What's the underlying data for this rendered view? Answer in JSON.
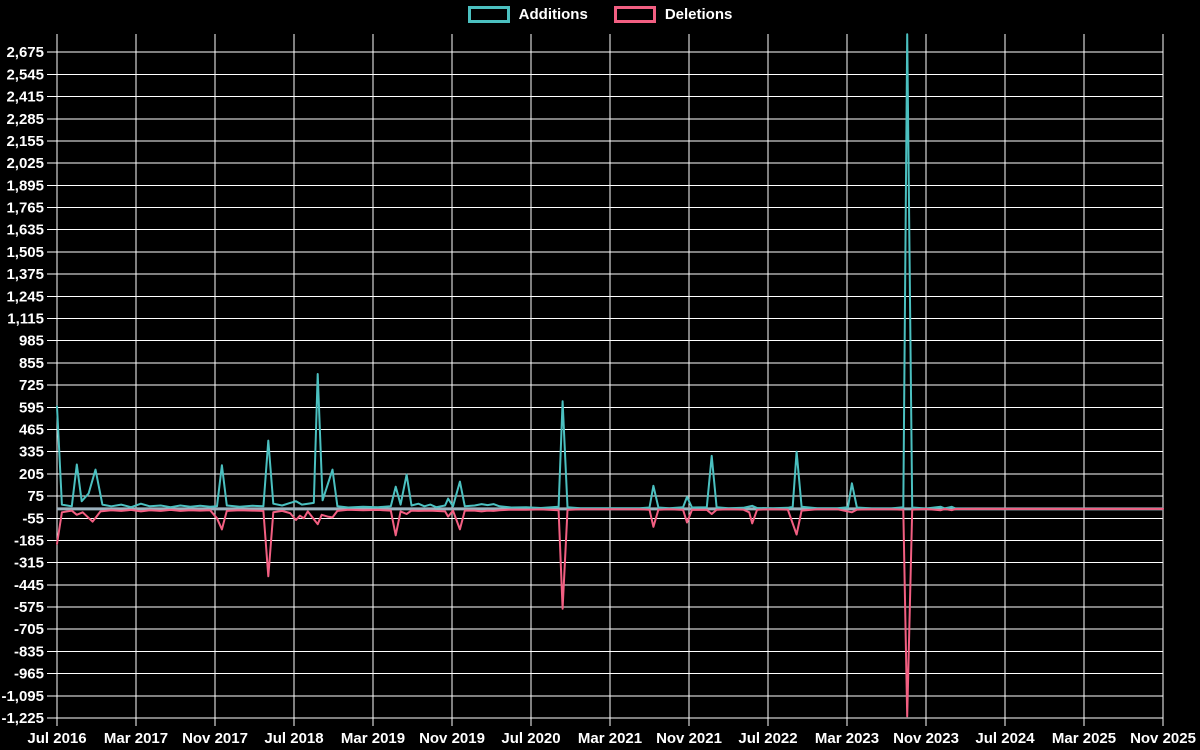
{
  "chart_data": {
    "type": "line",
    "title": "",
    "background": "#000000",
    "grid_color": "#ffffff",
    "text_color": "#ffffff",
    "zero_line_color": "#9bb0bc",
    "legend_position": "top-center",
    "grid": true,
    "x_axis": {
      "tick_labels": [
        "Jul 2016",
        "Mar 2017",
        "Nov 2017",
        "Jul 2018",
        "Mar 2019",
        "Nov 2019",
        "Jul 2020",
        "Mar 2021",
        "Nov 2021",
        "Jul 2022",
        "Mar 2023",
        "Nov 2023",
        "Jul 2024",
        "Mar 2025",
        "Nov 2025"
      ],
      "months_per_tick": 8
    },
    "y_axis": {
      "min": -1225,
      "max": 2805,
      "tick_start": -1225,
      "tick_end": 2675,
      "tick_step": 130,
      "tick_labels": [
        "2,675",
        "2,545",
        "2,415",
        "2,285",
        "2,155",
        "2,025",
        "1,895",
        "1,765",
        "1,635",
        "1,505",
        "1,375",
        "1,245",
        "1,115",
        "985",
        "855",
        "725",
        "595",
        "465",
        "335",
        "205",
        "75",
        "-55",
        "-185",
        "-315",
        "-445",
        "-575",
        "-705",
        "-835",
        "-965",
        "-1,095",
        "-1,225"
      ]
    },
    "series": [
      {
        "name": "Additions",
        "color": "#4bc0c0",
        "points": [
          [
            0,
            600
          ],
          [
            0.5,
            25
          ],
          [
            1.5,
            15
          ],
          [
            2,
            260
          ],
          [
            2.5,
            45
          ],
          [
            3.2,
            90
          ],
          [
            3.9,
            230
          ],
          [
            4.6,
            25
          ],
          [
            5.5,
            15
          ],
          [
            6.5,
            25
          ],
          [
            7.5,
            10
          ],
          [
            8.5,
            30
          ],
          [
            9.4,
            15
          ],
          [
            10.5,
            20
          ],
          [
            11.5,
            10
          ],
          [
            12.5,
            20
          ],
          [
            13.5,
            12
          ],
          [
            14.5,
            18
          ],
          [
            15.5,
            12
          ],
          [
            16.2,
            15
          ],
          [
            16.7,
            255
          ],
          [
            17.2,
            20
          ],
          [
            18.5,
            12
          ],
          [
            19.8,
            18
          ],
          [
            20.9,
            15
          ],
          [
            21.4,
            400
          ],
          [
            21.9,
            30
          ],
          [
            22.8,
            20
          ],
          [
            23.6,
            35
          ],
          [
            24.2,
            45
          ],
          [
            24.8,
            25
          ],
          [
            26,
            35
          ],
          [
            26.4,
            790
          ],
          [
            26.9,
            50
          ],
          [
            27.9,
            230
          ],
          [
            28.4,
            15
          ],
          [
            29.5,
            8
          ],
          [
            31,
            12
          ],
          [
            32.5,
            10
          ],
          [
            33.8,
            15
          ],
          [
            34.3,
            130
          ],
          [
            34.8,
            25
          ],
          [
            35.4,
            200
          ],
          [
            35.9,
            20
          ],
          [
            36.6,
            30
          ],
          [
            37.2,
            15
          ],
          [
            37.8,
            25
          ],
          [
            38.4,
            10
          ],
          [
            39.3,
            20
          ],
          [
            39.6,
            60
          ],
          [
            40.1,
            15
          ],
          [
            40.8,
            160
          ],
          [
            41.3,
            15
          ],
          [
            42.3,
            20
          ],
          [
            43,
            28
          ],
          [
            43.6,
            22
          ],
          [
            44.2,
            28
          ],
          [
            44.8,
            15
          ],
          [
            46,
            8
          ],
          [
            47.5,
            10
          ],
          [
            49,
            5
          ],
          [
            50.8,
            12
          ],
          [
            51.2,
            630
          ],
          [
            51.7,
            10
          ],
          [
            53,
            4
          ],
          [
            55,
            4
          ],
          [
            57,
            4
          ],
          [
            59,
            4
          ],
          [
            60,
            8
          ],
          [
            60.4,
            135
          ],
          [
            60.9,
            8
          ],
          [
            62,
            4
          ],
          [
            63.4,
            10
          ],
          [
            63.8,
            70
          ],
          [
            64.3,
            8
          ],
          [
            65.8,
            10
          ],
          [
            66.3,
            310
          ],
          [
            66.8,
            10
          ],
          [
            68,
            4
          ],
          [
            69.5,
            6
          ],
          [
            70.4,
            18
          ],
          [
            70.9,
            5
          ],
          [
            72.5,
            4
          ],
          [
            74,
            6
          ],
          [
            74.5,
            12
          ],
          [
            74.9,
            335
          ],
          [
            75.4,
            12
          ],
          [
            77,
            4
          ],
          [
            79,
            4
          ],
          [
            80.1,
            10
          ],
          [
            80.5,
            150
          ],
          [
            81,
            8
          ],
          [
            82.5,
            3
          ],
          [
            84.5,
            3
          ],
          [
            85.7,
            10
          ],
          [
            86.1,
            2780
          ],
          [
            86.6,
            8
          ],
          [
            88,
            2
          ],
          [
            89.5,
            12
          ],
          [
            89.9,
            3
          ],
          [
            90.6,
            12
          ],
          [
            91,
            2
          ],
          [
            93,
            0
          ],
          [
            98,
            0
          ],
          [
            104,
            0
          ],
          [
            112,
            0
          ]
        ]
      },
      {
        "name": "Deletions",
        "color": "#f25f82",
        "points": [
          [
            0,
            -205
          ],
          [
            0.5,
            -20
          ],
          [
            1.5,
            -10
          ],
          [
            2,
            -35
          ],
          [
            2.6,
            -20
          ],
          [
            3.6,
            -75
          ],
          [
            4.4,
            -15
          ],
          [
            5.5,
            -8
          ],
          [
            6.5,
            -12
          ],
          [
            7.5,
            -6
          ],
          [
            8.5,
            -15
          ],
          [
            9.4,
            -8
          ],
          [
            10.5,
            -12
          ],
          [
            11.5,
            -6
          ],
          [
            12.5,
            -12
          ],
          [
            13.5,
            -8
          ],
          [
            14.5,
            -10
          ],
          [
            15.5,
            -8
          ],
          [
            16.2,
            -55
          ],
          [
            16.7,
            -120
          ],
          [
            17.2,
            -12
          ],
          [
            18.5,
            -8
          ],
          [
            19.8,
            -10
          ],
          [
            20.9,
            -12
          ],
          [
            21.4,
            -395
          ],
          [
            21.9,
            -20
          ],
          [
            22.8,
            -12
          ],
          [
            23.6,
            -25
          ],
          [
            24.2,
            -65
          ],
          [
            24.6,
            -40
          ],
          [
            25,
            -55
          ],
          [
            25.4,
            -15
          ],
          [
            26,
            -60
          ],
          [
            26.4,
            -90
          ],
          [
            26.8,
            -35
          ],
          [
            27.4,
            -45
          ],
          [
            27.9,
            -50
          ],
          [
            28.4,
            -12
          ],
          [
            29.5,
            -5
          ],
          [
            31,
            -8
          ],
          [
            32.5,
            -6
          ],
          [
            33.8,
            -10
          ],
          [
            34.3,
            -155
          ],
          [
            34.8,
            -15
          ],
          [
            35.4,
            -30
          ],
          [
            35.9,
            -10
          ],
          [
            36.6,
            -12
          ],
          [
            37.8,
            -10
          ],
          [
            39.3,
            -15
          ],
          [
            39.6,
            -45
          ],
          [
            40.1,
            -10
          ],
          [
            40.8,
            -120
          ],
          [
            41.3,
            -10
          ],
          [
            42.3,
            -10
          ],
          [
            43,
            -15
          ],
          [
            43.6,
            -10
          ],
          [
            44.2,
            -12
          ],
          [
            44.8,
            -8
          ],
          [
            46,
            -4
          ],
          [
            47.5,
            -5
          ],
          [
            49,
            -3
          ],
          [
            50.8,
            -8
          ],
          [
            51.2,
            -585
          ],
          [
            51.7,
            -6
          ],
          [
            53,
            -2
          ],
          [
            55,
            -2
          ],
          [
            57,
            -2
          ],
          [
            59,
            -2
          ],
          [
            60,
            -5
          ],
          [
            60.4,
            -105
          ],
          [
            60.9,
            -5
          ],
          [
            62,
            -2
          ],
          [
            63.4,
            -6
          ],
          [
            63.8,
            -80
          ],
          [
            64.3,
            -5
          ],
          [
            65.8,
            -6
          ],
          [
            66.3,
            -30
          ],
          [
            66.8,
            -5
          ],
          [
            68,
            -2
          ],
          [
            69.5,
            -4
          ],
          [
            70.1,
            -20
          ],
          [
            70.4,
            -85
          ],
          [
            70.9,
            -5
          ],
          [
            72.5,
            -2
          ],
          [
            74,
            -4
          ],
          [
            74.9,
            -150
          ],
          [
            75.4,
            -10
          ],
          [
            77,
            -2
          ],
          [
            79,
            -2
          ],
          [
            80.5,
            -20
          ],
          [
            81,
            -4
          ],
          [
            82.5,
            -2
          ],
          [
            84.5,
            -2
          ],
          [
            85.7,
            -5
          ],
          [
            86.1,
            -1215
          ],
          [
            86.6,
            -4
          ],
          [
            88,
            -1
          ],
          [
            89.5,
            -8
          ],
          [
            89.9,
            -1
          ],
          [
            90.6,
            -8
          ],
          [
            91,
            -1
          ],
          [
            93,
            0
          ],
          [
            98,
            0
          ],
          [
            104,
            0
          ],
          [
            112,
            0
          ]
        ]
      }
    ]
  }
}
